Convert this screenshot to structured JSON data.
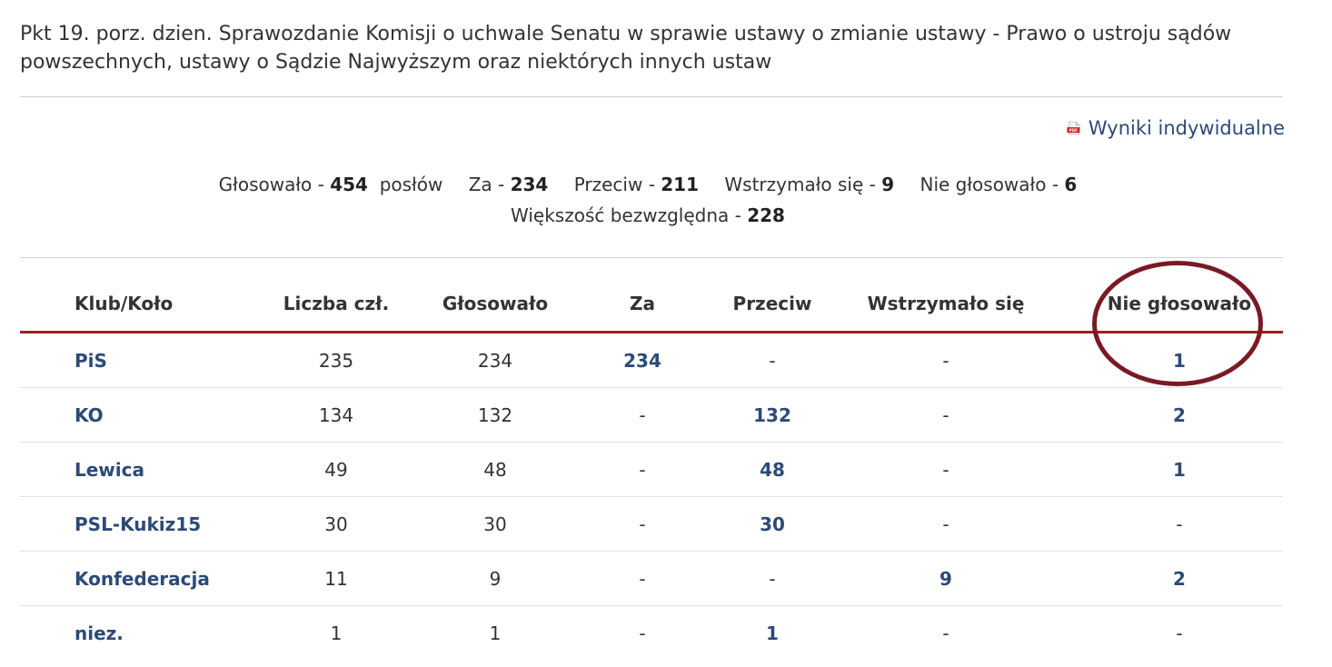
{
  "header": {
    "title": "Pkt 19. porz. dzien. Sprawozdanie Komisji o uchwale Senatu w sprawie ustawy o zmianie ustawy - Prawo o ustroju sądów powszechnych, ustawy o Sądzie Najwyższym oraz niektórych innych ustaw"
  },
  "pdf_link": {
    "label": "Wyniki indywidualne",
    "icon": "pdf-icon"
  },
  "summary": {
    "voted_label": "Głosowało -",
    "voted_value": "454",
    "voted_unit": "posłów",
    "for_label": "Za -",
    "for_value": "234",
    "against_label": "Przeciw -",
    "against_value": "211",
    "abstain_label": "Wstrzymało się -",
    "abstain_value": "9",
    "not_voted_label": "Nie głosowało -",
    "not_voted_value": "6",
    "majority_label": "Większość bezwzględna -",
    "majority_value": "228"
  },
  "table": {
    "columns": [
      "Klub/Koło",
      "Liczba czł.",
      "Głosowało",
      "Za",
      "Przeciw",
      "Wstrzymało się",
      "Nie głosowało"
    ],
    "rows": [
      [
        "PiS",
        "235",
        "234",
        "234",
        "-",
        "-",
        "1"
      ],
      [
        "KO",
        "134",
        "132",
        "-",
        "132",
        "-",
        "2"
      ],
      [
        "Lewica",
        "49",
        "48",
        "-",
        "48",
        "-",
        "1"
      ],
      [
        "PSL-Kukiz15",
        "30",
        "30",
        "-",
        "30",
        "-",
        "-"
      ],
      [
        "Konfederacja",
        "11",
        "9",
        "-",
        "-",
        "9",
        "2"
      ],
      [
        "niez.",
        "1",
        "1",
        "-",
        "1",
        "-",
        "-"
      ]
    ]
  },
  "colors": {
    "link": "#2c4a78",
    "header_rule": "#a32020",
    "annotation_circle": "#7a1a24"
  }
}
